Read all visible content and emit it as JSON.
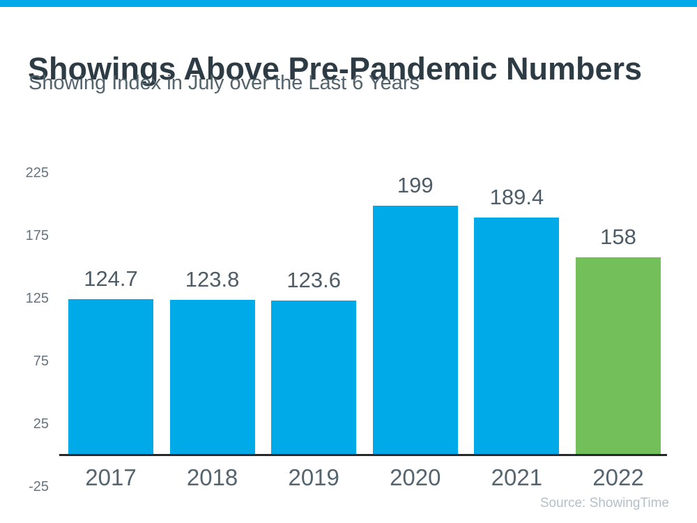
{
  "chart_data": {
    "type": "bar",
    "title": "Showings Above Pre-Pandemic Numbers",
    "subtitle": "Showing Index in July over the Last 6 Years",
    "categories": [
      "2017",
      "2018",
      "2019",
      "2020",
      "2021",
      "2022"
    ],
    "values": [
      124.7,
      123.8,
      123.6,
      199,
      189.4,
      158
    ],
    "value_labels": [
      "124.7",
      "123.8",
      "123.6",
      "199",
      "189.4",
      "158"
    ],
    "bar_colors": [
      "#00A9E8",
      "#00A9E8",
      "#00A9E8",
      "#00A9E8",
      "#00A9E8",
      "#73C05A"
    ],
    "yticks": [
      225,
      175,
      125,
      75,
      25,
      -25
    ],
    "ylim": [
      -25,
      225
    ],
    "xlabel": "",
    "ylabel": "",
    "grid": false,
    "legend": "none",
    "source_note": "Source: ShowingTime"
  },
  "colors": {
    "top_strip": "#00A9E8",
    "title_text": "#2D3B45",
    "subtitle_text": "#53646D",
    "ytick_text": "#64747F",
    "value_label_text": "#4D5D68",
    "xtick_text": "#55656F",
    "axis_line": "#23292E",
    "source_text": "#B2C0CA",
    "background": "#FFFFFF"
  }
}
